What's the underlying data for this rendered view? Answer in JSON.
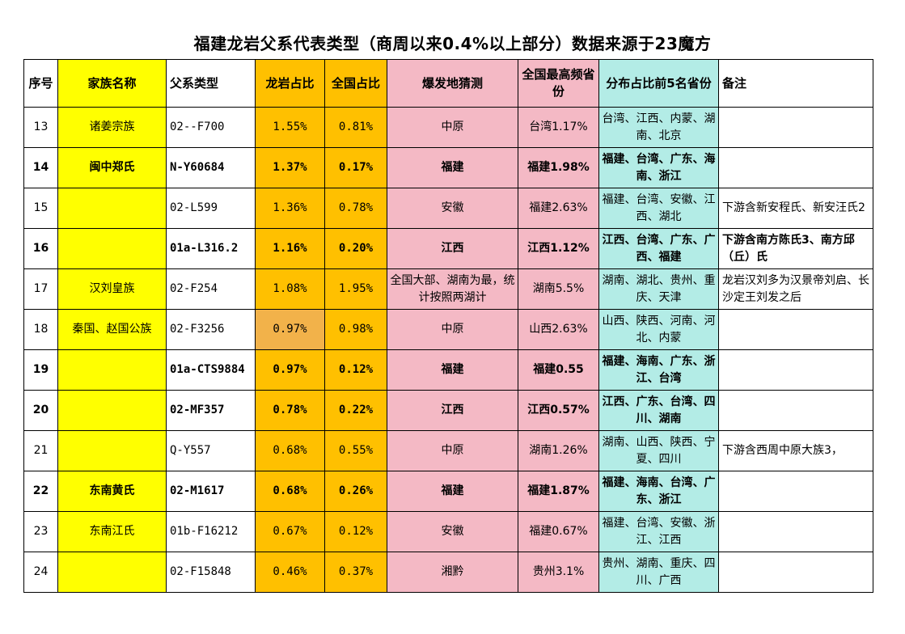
{
  "title": "福建龙岩父系代表类型（商周以来0.4%以上部分）数据来源于23魔方",
  "columns": [
    "序号",
    "家族名称",
    "父系类型",
    "龙岩占比",
    "全国占比",
    "爆发地猜测",
    "全国最高频省份",
    "分布占比前5名省份",
    "备注"
  ],
  "colors": {
    "family": "#ffff00",
    "ratio": "#ffc000",
    "origin": "#f4b9c5",
    "provinces": "#b3ece6"
  },
  "rows": [
    {
      "seq": "13",
      "family": "诸姜宗族",
      "type": "02--F700",
      "longyan": "1.55%",
      "national": "0.81%",
      "origin": "中原",
      "top": "台湾1.17%",
      "provinces": "台湾、江西、内蒙、湖南、北京",
      "note": ""
    },
    {
      "seq": "14",
      "family": "闽中郑氏",
      "type": "N-Y60684",
      "longyan": "1.37%",
      "national": "0.17%",
      "origin": "福建",
      "top": "福建1.98%",
      "provinces": "福建、台湾、广东、海南、浙江",
      "note": ""
    },
    {
      "seq": "15",
      "family": "",
      "type": "02-L599",
      "longyan": "1.36%",
      "national": "0.78%",
      "origin": "安徽",
      "top": "福建2.63%",
      "provinces": "福建、台湾、安徽、江西、湖北",
      "note": "下游含新安程氏、新安汪氏2"
    },
    {
      "seq": "16",
      "family": "",
      "type": "01a-L316.2",
      "longyan": "1.16%",
      "national": "0.20%",
      "origin": "江西",
      "top": "江西1.12%",
      "provinces": "江西、台湾、广东、广西、福建",
      "note": "下游含南方陈氏3、南方邱（丘）氏"
    },
    {
      "seq": "17",
      "family": "汉刘皇族",
      "type": "02-F254",
      "longyan": "1.08%",
      "national": "1.95%",
      "origin": "全国大部、湖南为最，统计按照两湖计",
      "top": "湖南5.5%",
      "provinces": "湖南、湖北、贵州、重庆、天津",
      "note": "龙岩汉刘多为汉景帝刘启、长沙定王刘发之后"
    },
    {
      "seq": "18",
      "family": "秦国、赵国公族",
      "type": "02-F3256",
      "longyan": "0.97%",
      "national": "0.98%",
      "origin": "中原",
      "top": "山西2.63%",
      "provinces": "山西、陕西、河南、河北、内蒙",
      "note": ""
    },
    {
      "seq": "19",
      "family": "",
      "type": "01a-CTS9884",
      "longyan": "0.97%",
      "national": "0.12%",
      "origin": "福建",
      "top": "福建0.55",
      "provinces": "福建、海南、广东、浙江、台湾",
      "note": ""
    },
    {
      "seq": "20",
      "family": "",
      "type": "02-MF357",
      "longyan": "0.78%",
      "national": "0.22%",
      "origin": "江西",
      "top": "江西0.57%",
      "provinces": "江西、广东、台湾、四川、湖南",
      "note": ""
    },
    {
      "seq": "21",
      "family": "",
      "type": "Q-Y557",
      "longyan": "0.68%",
      "national": "0.55%",
      "origin": "中原",
      "top": "湖南1.26%",
      "provinces": "湖南、山西、陕西、宁夏、四川",
      "note": "下游含西周中原大族3，"
    },
    {
      "seq": "22",
      "family": "东南黄氏",
      "type": "02-M1617",
      "longyan": "0.68%",
      "national": "0.26%",
      "origin": "福建",
      "top": "福建1.87%",
      "provinces": "福建、海南、台湾、广东、浙江",
      "note": ""
    },
    {
      "seq": "23",
      "family": "东南江氏",
      "type": "01b-F16212",
      "longyan": "0.67%",
      "national": "0.12%",
      "origin": "安徽",
      "top": "福建0.67%",
      "provinces": "福建、台湾、安徽、浙江、江西",
      "note": ""
    },
    {
      "seq": "24",
      "family": "",
      "type": "02-F15848",
      "longyan": "0.46%",
      "national": "0.37%",
      "origin": "湘黔",
      "top": "贵州3.1%",
      "provinces": "贵州、湖南、重庆、四川、广西",
      "note": ""
    }
  ]
}
